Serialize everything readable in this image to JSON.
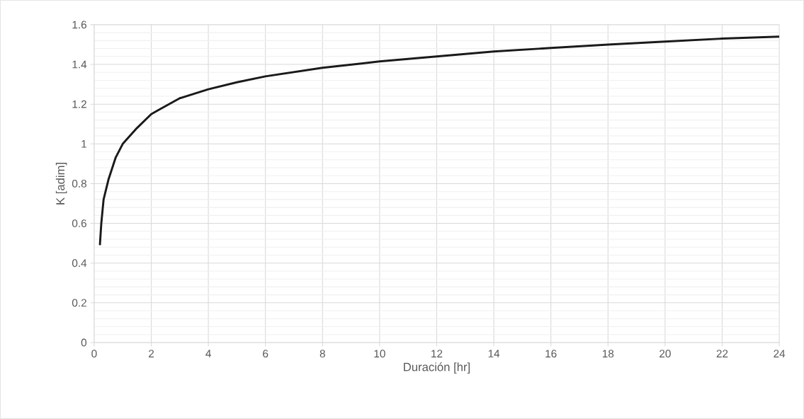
{
  "chart_data": {
    "type": "line",
    "xlabel": "Duración [hr]",
    "ylabel": "K [adim]",
    "x": [
      0.2,
      0.25,
      0.33,
      0.5,
      0.75,
      1,
      1.5,
      2,
      2.25,
      3,
      4,
      5,
      6,
      8,
      10,
      12,
      14,
      16,
      18,
      20,
      22,
      24
    ],
    "series": [
      {
        "color": "#1a1a1a",
        "values": [
          0.49,
          0.6,
          0.72,
          0.82,
          0.93,
          1.0,
          1.08,
          1.15,
          1.17,
          1.23,
          1.275,
          1.31,
          1.34,
          1.383,
          1.415,
          1.44,
          1.465,
          1.483,
          1.5,
          1.515,
          1.53,
          1.54
        ]
      }
    ],
    "xlim": [
      0,
      24
    ],
    "ylim": [
      0,
      1.6
    ],
    "xticks": [
      0,
      2,
      4,
      6,
      8,
      10,
      12,
      14,
      16,
      18,
      20,
      22,
      24
    ],
    "yticks": [
      0,
      0.2,
      0.4,
      0.6,
      0.8,
      1,
      1.2,
      1.4,
      1.6
    ],
    "grid": true,
    "legend": false,
    "marker": "none",
    "line_style": "solid"
  }
}
